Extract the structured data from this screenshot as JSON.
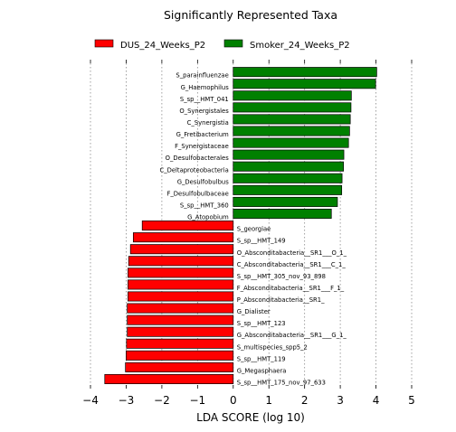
{
  "chart_data": {
    "type": "bar",
    "orientation": "horizontal",
    "title": "Significantly Represented Taxa",
    "xlabel": "LDA SCORE (log 10)",
    "ylabel": "",
    "xlim": [
      -4,
      5
    ],
    "xticks": [
      "−4",
      "−3",
      "−2",
      "−1",
      "0",
      "1",
      "2",
      "3",
      "4",
      "5"
    ],
    "grid": "vertical dotted",
    "legend_position": "top",
    "series": [
      {
        "name": "DUS_24_Weeks_P2",
        "color": "#ff0000"
      },
      {
        "name": "Smoker_24_Weeks_P2",
        "color": "#008000"
      }
    ],
    "bars": [
      {
        "label": "S_parainfluenzae",
        "value": 4.02,
        "series": 1
      },
      {
        "label": "G_Haemophilus",
        "value": 3.99,
        "series": 1
      },
      {
        "label": "S_sp__HMT_041",
        "value": 3.31,
        "series": 1
      },
      {
        "label": "O_Synergistales",
        "value": 3.3,
        "series": 1
      },
      {
        "label": "C_Synergistia",
        "value": 3.28,
        "series": 1
      },
      {
        "label": "G_Fretibacterium",
        "value": 3.26,
        "series": 1
      },
      {
        "label": "F_Synergistaceae",
        "value": 3.23,
        "series": 1
      },
      {
        "label": "O_Desulfobacterales",
        "value": 3.1,
        "series": 1
      },
      {
        "label": "C_Deltaproteobacteria",
        "value": 3.09,
        "series": 1
      },
      {
        "label": "G_Desulfobulbus",
        "value": 3.05,
        "series": 1
      },
      {
        "label": "F_Desulfobulbaceae",
        "value": 3.04,
        "series": 1
      },
      {
        "label": "S_sp__HMT_360",
        "value": 2.92,
        "series": 1
      },
      {
        "label": "G_Atopobium",
        "value": 2.75,
        "series": 1
      },
      {
        "label": "S_georgiae",
        "value": -2.55,
        "series": 0
      },
      {
        "label": "S_sp__HMT_149",
        "value": -2.8,
        "series": 0
      },
      {
        "label": "O_Absconditabacteria__SR1___O_1_",
        "value": -2.88,
        "series": 0
      },
      {
        "label": "C_Absconditabacteria__SR1___C_1_",
        "value": -2.93,
        "series": 0
      },
      {
        "label": "S_sp__HMT_305_nov_93_898",
        "value": -2.95,
        "series": 0
      },
      {
        "label": "F_Absconditabacteria__SR1___F_1_",
        "value": -2.95,
        "series": 0
      },
      {
        "label": "P_Absconditabacteria__SR1_",
        "value": -2.95,
        "series": 0
      },
      {
        "label": "G_Dialister",
        "value": -2.97,
        "series": 0
      },
      {
        "label": "S_sp__HMT_123",
        "value": -2.97,
        "series": 0
      },
      {
        "label": "G_Absconditabacteria__SR1___G_1_",
        "value": -2.97,
        "series": 0
      },
      {
        "label": "S_multispecies_spp5_2",
        "value": -2.99,
        "series": 0
      },
      {
        "label": "S_sp__HMT_119",
        "value": -3.0,
        "series": 0
      },
      {
        "label": "G_Megasphaera",
        "value": -3.02,
        "series": 0
      },
      {
        "label": "S_sp__HMT_175_nov_97_633",
        "value": -3.6,
        "series": 0
      }
    ]
  }
}
